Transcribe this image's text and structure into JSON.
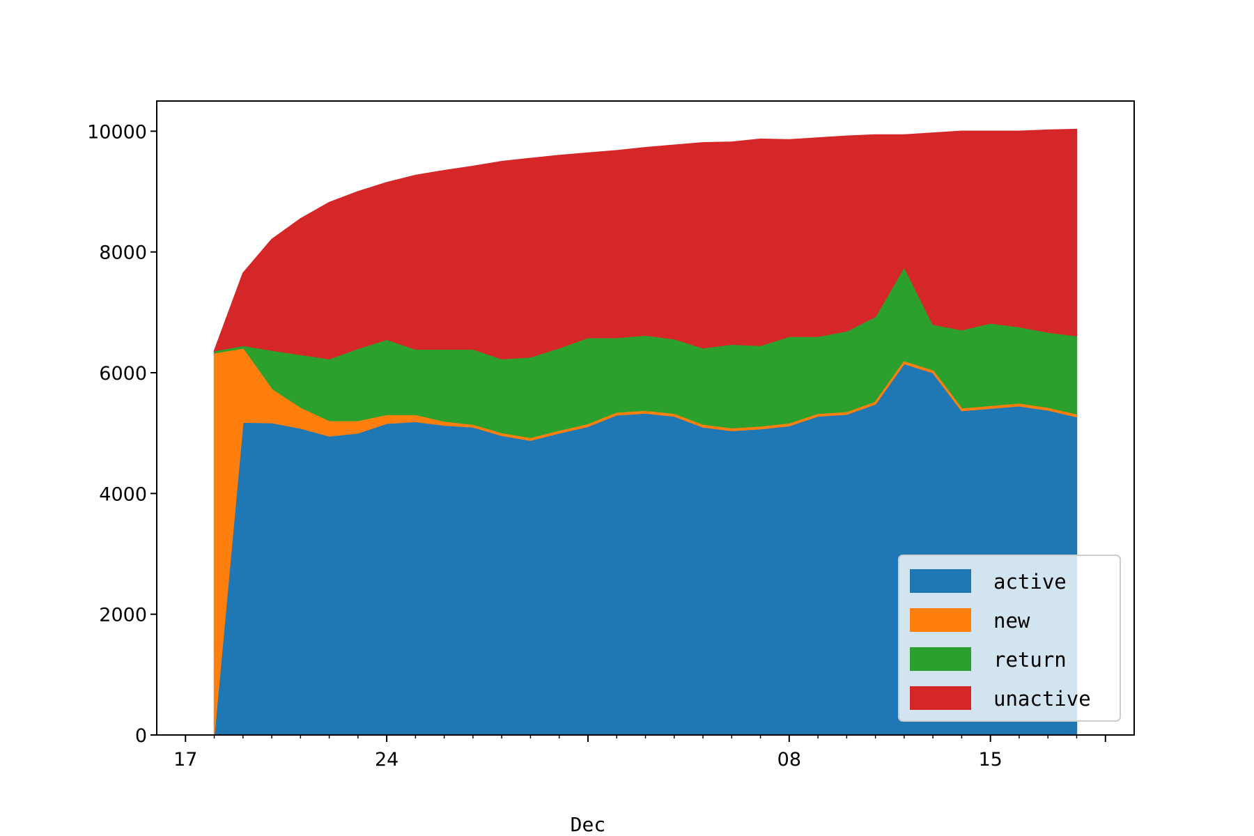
{
  "chart_data": {
    "type": "area",
    "stacked": true,
    "title": "",
    "xlabel": "Dec",
    "ylabel": "",
    "x_is_date": true,
    "x_start": "11-18",
    "x_step_days": 1,
    "x_range_dates": [
      "11-16",
      "12-20"
    ],
    "ylim": [
      0,
      10500
    ],
    "yticks": [
      0,
      2000,
      4000,
      6000,
      8000,
      10000
    ],
    "xticks": [
      {
        "date": "11-17",
        "label": "17"
      },
      {
        "date": "11-24",
        "label": "24"
      },
      {
        "date": "12-01",
        "label": ""
      },
      {
        "date": "12-08",
        "label": "08"
      },
      {
        "date": "12-15",
        "label": "15"
      },
      {
        "date": "12-19",
        "label": ""
      }
    ],
    "grid": false,
    "legend_position": "lower-right",
    "series": [
      {
        "name": "active",
        "color": "#1f77b4",
        "values": [
          0,
          5180,
          5170,
          5080,
          4950,
          5000,
          5160,
          5190,
          5130,
          5100,
          4960,
          4880,
          5000,
          5110,
          5300,
          5330,
          5280,
          5100,
          5040,
          5070,
          5120,
          5280,
          5310,
          5480,
          6150,
          6000,
          5370,
          5410,
          5450,
          5380,
          5270
        ]
      },
      {
        "name": "new",
        "color": "#ff7f0e",
        "values": [
          6300,
          1200,
          540,
          320,
          230,
          180,
          120,
          90,
          40,
          20,
          20,
          20,
          20,
          20,
          20,
          20,
          20,
          20,
          20,
          20,
          20,
          20,
          20,
          20,
          20,
          20,
          20,
          20,
          20,
          20,
          20
        ]
      },
      {
        "name": "return",
        "color": "#2ca02c",
        "values": [
          60,
          70,
          660,
          900,
          1050,
          1220,
          1270,
          1110,
          1220,
          1270,
          1250,
          1360,
          1390,
          1450,
          1260,
          1270,
          1260,
          1290,
          1410,
          1360,
          1460,
          1300,
          1360,
          1430,
          1580,
          780,
          1320,
          1390,
          1290,
          1270,
          1320
        ]
      },
      {
        "name": "unactive",
        "color": "#d62728",
        "values": [
          0,
          1200,
          1840,
          2250,
          2590,
          2600,
          2600,
          2880,
          2960,
          3030,
          3270,
          3290,
          3190,
          3060,
          3100,
          3110,
          3210,
          3400,
          3350,
          3420,
          3260,
          3290,
          3230,
          3010,
          2190,
          3170,
          3290,
          3180,
          3240,
          3350,
          3420
        ]
      }
    ]
  }
}
